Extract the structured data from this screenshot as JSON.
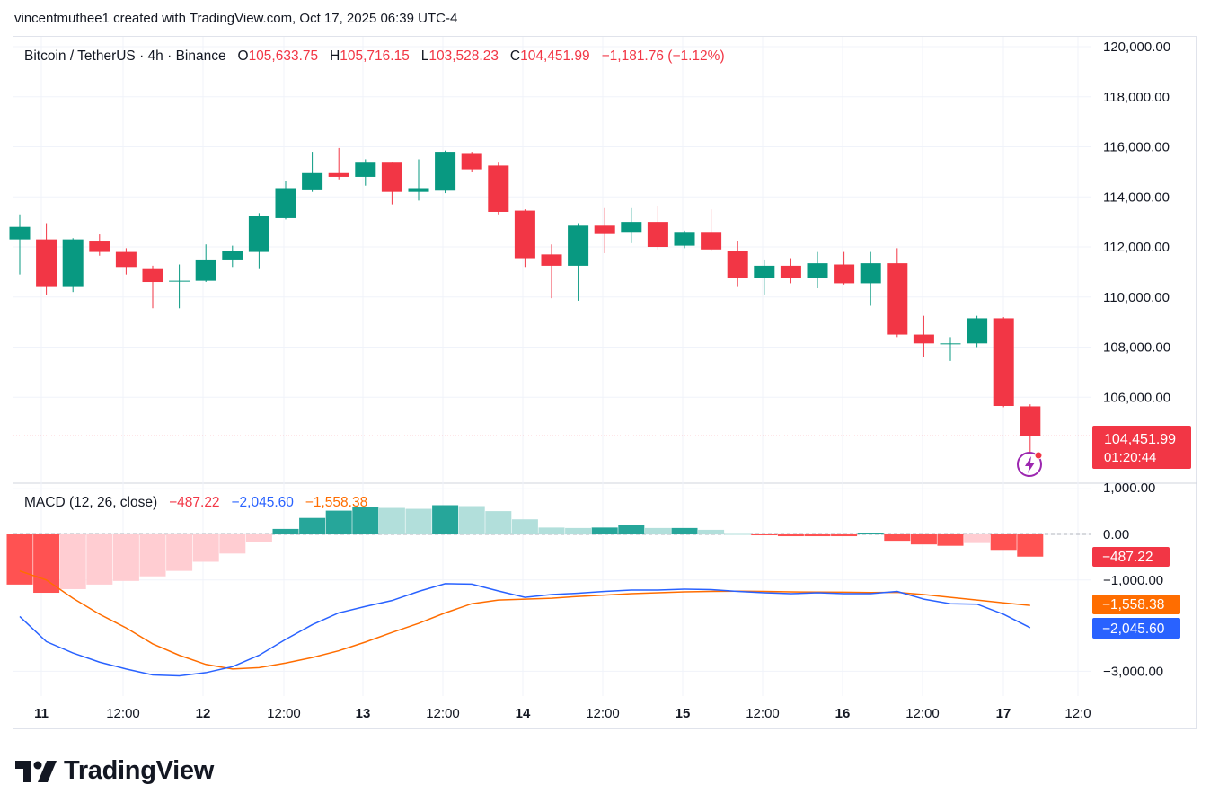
{
  "header": {
    "created_by": "vincentmuthee1 created with TradingView.com, Oct 17, 2025 06:39 UTC-4"
  },
  "legend": {
    "symbol": "Bitcoin / TetherUS · 4h · Binance",
    "o_label": "O",
    "o_value": "105,633.75",
    "h_label": "H",
    "h_value": "105,716.15",
    "l_label": "L",
    "l_value": "103,528.23",
    "c_label": "C",
    "c_value": "104,451.99",
    "change": "−1,181.76 (−1.12%)"
  },
  "macd_legend": {
    "name": "MACD (12, 26, close)",
    "hist": "−487.22",
    "macd": "−2,045.60",
    "signal": "−1,558.38"
  },
  "price_badge": {
    "price": "104,451.99",
    "countdown": "01:20:44"
  },
  "macd_badges": {
    "hist": "−487.22",
    "signal": "−1,558.38",
    "macd": "−2,045.60"
  },
  "brand": {
    "name": "TradingView"
  },
  "colors": {
    "up": "#089981",
    "down": "#f23645",
    "macd": "#2962ff",
    "signal": "#ff6d00",
    "hist_up_strong": "#26a69a",
    "hist_up_weak": "#b2dfdb",
    "hist_down_strong": "#ff5252",
    "hist_down_weak": "#ffcdd2"
  },
  "chart_data": [
    {
      "type": "candlestick",
      "title": "Bitcoin / TetherUS · 4h · Binance",
      "timeframe": "4h",
      "x_tick_labels": [
        "11",
        "12:00",
        "12",
        "12:00",
        "13",
        "12:00",
        "14",
        "12:00",
        "15",
        "12:00",
        "16",
        "12:00",
        "17",
        "12:0"
      ],
      "y_tick_labels": [
        "120,000.00",
        "118,000.00",
        "116,000.00",
        "114,000.00",
        "112,000.00",
        "110,000.00",
        "108,000.00",
        "106,000.00"
      ],
      "ylim": [
        103000,
        120500
      ],
      "grid": true,
      "last_price": 104451.99,
      "candles": [
        {
          "o": 112300,
          "h": 113300,
          "l": 110900,
          "c": 112800
        },
        {
          "o": 112300,
          "h": 112950,
          "l": 110100,
          "c": 110400
        },
        {
          "o": 110400,
          "h": 112350,
          "l": 110200,
          "c": 112300
        },
        {
          "o": 112250,
          "h": 112500,
          "l": 111650,
          "c": 111800
        },
        {
          "o": 111800,
          "h": 111950,
          "l": 110900,
          "c": 111200
        },
        {
          "o": 111150,
          "h": 111250,
          "l": 109550,
          "c": 110600
        },
        {
          "o": 110650,
          "h": 111300,
          "l": 109550,
          "c": 110650
        },
        {
          "o": 110650,
          "h": 112100,
          "l": 110600,
          "c": 111500
        },
        {
          "o": 111500,
          "h": 112050,
          "l": 111200,
          "c": 111850
        },
        {
          "o": 111800,
          "h": 113350,
          "l": 111150,
          "c": 113250
        },
        {
          "o": 113150,
          "h": 114650,
          "l": 113100,
          "c": 114350
        },
        {
          "o": 114300,
          "h": 115800,
          "l": 114200,
          "c": 114950
        },
        {
          "o": 114950,
          "h": 115950,
          "l": 114700,
          "c": 114800
        },
        {
          "o": 114800,
          "h": 115500,
          "l": 114450,
          "c": 115400
        },
        {
          "o": 115400,
          "h": 115400,
          "l": 113700,
          "c": 114200
        },
        {
          "o": 114200,
          "h": 115500,
          "l": 113850,
          "c": 114350
        },
        {
          "o": 114250,
          "h": 115850,
          "l": 114150,
          "c": 115800
        },
        {
          "o": 115750,
          "h": 115800,
          "l": 115000,
          "c": 115100
        },
        {
          "o": 115250,
          "h": 115400,
          "l": 113300,
          "c": 113400
        },
        {
          "o": 113450,
          "h": 113500,
          "l": 111200,
          "c": 111550
        },
        {
          "o": 111700,
          "h": 112100,
          "l": 109950,
          "c": 111250
        },
        {
          "o": 111250,
          "h": 112950,
          "l": 109850,
          "c": 112850
        },
        {
          "o": 112850,
          "h": 113550,
          "l": 111750,
          "c": 112550
        },
        {
          "o": 112600,
          "h": 113550,
          "l": 112150,
          "c": 113000
        },
        {
          "o": 113000,
          "h": 113650,
          "l": 111900,
          "c": 112000
        },
        {
          "o": 112050,
          "h": 112650,
          "l": 111950,
          "c": 112600
        },
        {
          "o": 112600,
          "h": 113500,
          "l": 111850,
          "c": 111900
        },
        {
          "o": 111850,
          "h": 112250,
          "l": 110400,
          "c": 110750
        },
        {
          "o": 110750,
          "h": 111500,
          "l": 110100,
          "c": 111250
        },
        {
          "o": 111250,
          "h": 111550,
          "l": 110550,
          "c": 110750
        },
        {
          "o": 110750,
          "h": 111800,
          "l": 110350,
          "c": 111350
        },
        {
          "o": 111300,
          "h": 111800,
          "l": 110500,
          "c": 110550
        },
        {
          "o": 110550,
          "h": 111800,
          "l": 109650,
          "c": 111350
        },
        {
          "o": 111350,
          "h": 111950,
          "l": 108400,
          "c": 108500
        },
        {
          "o": 108500,
          "h": 109250,
          "l": 107600,
          "c": 108150
        },
        {
          "o": 108150,
          "h": 108400,
          "l": 107450,
          "c": 108150
        },
        {
          "o": 108150,
          "h": 109250,
          "l": 108000,
          "c": 109150
        },
        {
          "o": 109150,
          "h": 109200,
          "l": 105600,
          "c": 105650
        },
        {
          "o": 105633.75,
          "h": 105716.15,
          "l": 103528.23,
          "c": 104451.99
        }
      ]
    },
    {
      "type": "bar",
      "title": "MACD (12, 26, close)",
      "y_tick_labels": [
        "1,000.00",
        "0.00",
        "−1,000.00",
        "−3,000.00"
      ],
      "ylim": [
        -3500,
        1100
      ],
      "series": [
        {
          "name": "Histogram",
          "values": [
            -1100,
            -1280,
            -1200,
            -1100,
            -1020,
            -920,
            -800,
            -600,
            -420,
            -160,
            120,
            360,
            520,
            600,
            580,
            560,
            640,
            620,
            510,
            330,
            150,
            140,
            150,
            200,
            140,
            140,
            100,
            10,
            -20,
            -40,
            -40,
            -40,
            20,
            -140,
            -220,
            -250,
            -190,
            -340,
            -487.22
          ]
        },
        {
          "name": "MACD",
          "values": [
            -1800,
            -2350,
            -2600,
            -2800,
            -2950,
            -3080,
            -3100,
            -3030,
            -2900,
            -2650,
            -2300,
            -1980,
            -1720,
            -1580,
            -1450,
            -1250,
            -1080,
            -1090,
            -1240,
            -1380,
            -1320,
            -1290,
            -1250,
            -1220,
            -1220,
            -1200,
            -1210,
            -1250,
            -1280,
            -1300,
            -1280,
            -1300,
            -1300,
            -1250,
            -1420,
            -1520,
            -1530,
            -1750,
            -2045.6
          ]
        },
        {
          "name": "Signal",
          "values": [
            -800,
            -1000,
            -1400,
            -1750,
            -2050,
            -2400,
            -2650,
            -2850,
            -2950,
            -2920,
            -2820,
            -2700,
            -2550,
            -2360,
            -2150,
            -1950,
            -1720,
            -1520,
            -1440,
            -1420,
            -1400,
            -1360,
            -1330,
            -1300,
            -1280,
            -1260,
            -1250,
            -1245,
            -1250,
            -1260,
            -1265,
            -1268,
            -1275,
            -1270,
            -1320,
            -1380,
            -1440,
            -1500,
            -1558.38
          ]
        }
      ]
    }
  ]
}
